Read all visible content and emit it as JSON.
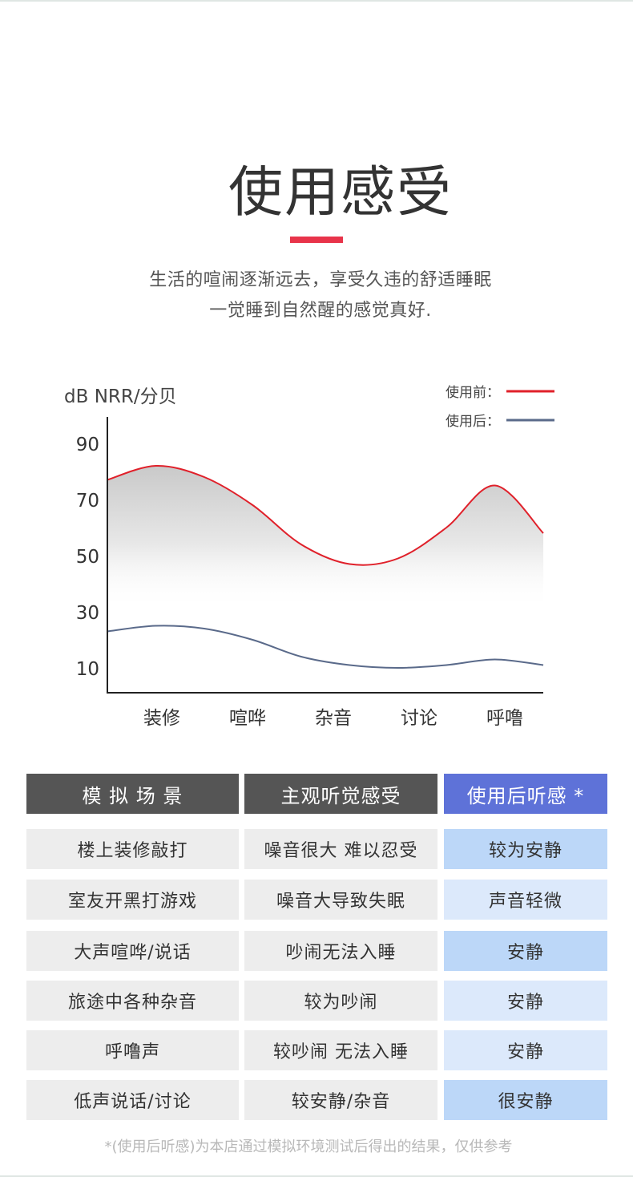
{
  "header": {
    "title": "使用感受",
    "subtitle_line1": "生活的喧闹逐渐远去，享受久违的舒适睡眠",
    "subtitle_line2": "一觉睡到自然醒的感觉真好."
  },
  "colors": {
    "accent": "#e8344a",
    "before_line": "#e0202a",
    "after_line": "#5a6a8a",
    "header_dark": "#555555",
    "header_accent": "#5e72d8",
    "row_gray": "#ededed",
    "row_blue_dark": "#bcd7f8",
    "row_blue_light": "#dce9fb"
  },
  "chart_data": {
    "type": "line",
    "ylabel": "dB NRR/分贝",
    "yticks": [
      90,
      70,
      50,
      30,
      10
    ],
    "categories": [
      "装修",
      "喧哗",
      "杂音",
      "讨论",
      "呼噜"
    ],
    "legend_placement": "top-right",
    "grid": false,
    "series": [
      {
        "name": "使用前：",
        "x": [
          0,
          0.5,
          1,
          1.5,
          2,
          2.5,
          3,
          3.5,
          4,
          4.5
        ],
        "values": [
          77,
          82,
          78,
          68,
          54,
          47,
          49,
          60,
          75,
          58
        ]
      },
      {
        "name": "使用后：",
        "x": [
          0,
          0.5,
          1,
          1.5,
          2,
          2.5,
          3,
          3.5,
          4,
          4.5
        ],
        "values": [
          23,
          25,
          24,
          20,
          14,
          11,
          10,
          11,
          13,
          11
        ]
      }
    ]
  },
  "table": {
    "headers": [
      "模 拟 场 景",
      "主观听觉感受",
      "使用后听感 *"
    ],
    "rows": [
      [
        "楼上装修敲打",
        "噪音很大 难以忍受",
        "较为安静"
      ],
      [
        "室友开黑打游戏",
        "噪音大导致失眠",
        "声音轻微"
      ],
      [
        "大声喧哗/说话",
        "吵闹无法入睡",
        "安静"
      ],
      [
        "旅途中各种杂音",
        "较为吵闹",
        "安静"
      ],
      [
        "呼噜声",
        "较吵闹 无法入睡",
        "安静"
      ],
      [
        "低声说话/讨论",
        "较安静/杂音",
        "很安静"
      ]
    ]
  },
  "footnote": "*(使用后听感)为本店通过模拟环境测试后得出的结果，仅供参考"
}
